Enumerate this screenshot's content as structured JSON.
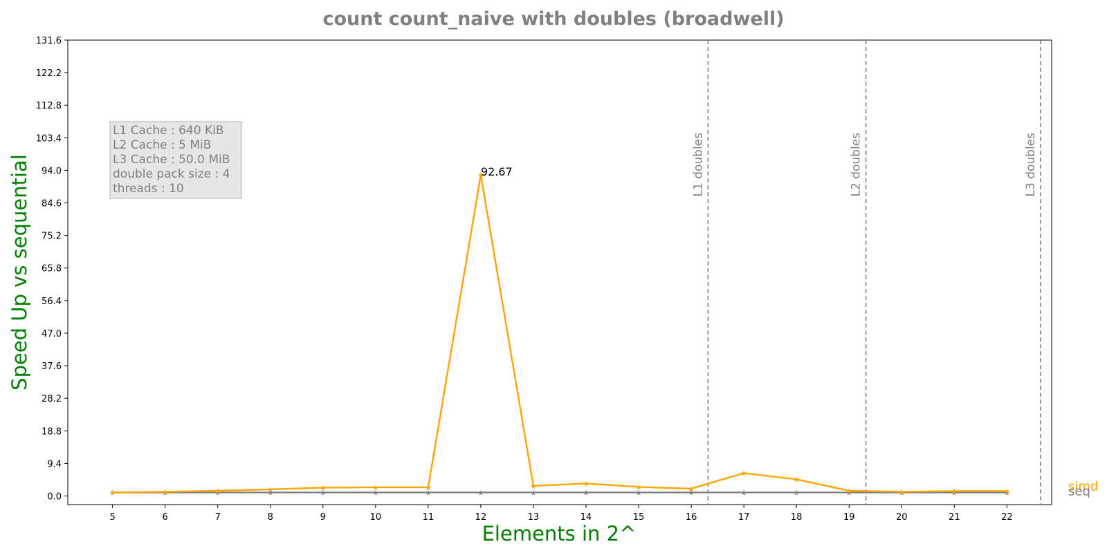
{
  "chart_data": {
    "type": "line",
    "title": "count count_naive with doubles  (broadwell)",
    "xlabel": "Elements in 2^",
    "ylabel": "Speed Up vs sequential",
    "x": [
      5,
      6,
      7,
      8,
      9,
      10,
      11,
      12,
      13,
      14,
      15,
      16,
      17,
      18,
      19,
      20,
      21,
      22
    ],
    "xlim": [
      4.15,
      22.85
    ],
    "ylim": [
      -2.5,
      131.6
    ],
    "y_ticks": [
      "0.0",
      "9.4",
      "18.8",
      "28.2",
      "37.6",
      "47.0",
      "56.4",
      "65.8",
      "75.2",
      "84.6",
      "94.0",
      "103.4",
      "112.8",
      "122.2",
      "131.6"
    ],
    "x_ticks": [
      "5",
      "6",
      "7",
      "8",
      "9",
      "10",
      "11",
      "12",
      "13",
      "14",
      "15",
      "16",
      "17",
      "18",
      "19",
      "20",
      "21",
      "22"
    ],
    "series": [
      {
        "name": "simd",
        "color": "#ffa500",
        "values": [
          1.0,
          1.2,
          1.5,
          1.9,
          2.4,
          2.5,
          2.5,
          92.67,
          2.9,
          3.6,
          2.6,
          2.1,
          6.6,
          4.8,
          1.5,
          1.2,
          1.4,
          1.4
        ]
      },
      {
        "name": "seq",
        "color": "#808080",
        "values": [
          1.0,
          1.0,
          1.0,
          1.0,
          1.0,
          1.0,
          1.0,
          1.0,
          1.0,
          1.0,
          1.0,
          1.0,
          1.0,
          1.0,
          1.0,
          1.0,
          1.0,
          1.0
        ]
      }
    ],
    "vertical_lines": [
      {
        "x": 16.32,
        "label": "L1 doubles"
      },
      {
        "x": 19.32,
        "label": "L2 doubles"
      },
      {
        "x": 22.64,
        "label": "L3 doubles"
      }
    ],
    "peak_annotation": {
      "x": 12,
      "y": 92.67,
      "text": "92.67"
    },
    "info_box": [
      "L1 Cache : 640 KiB",
      "L2 Cache : 5 MiB",
      "L3 Cache : 50.0 MiB",
      "double pack size : 4",
      "threads : 10"
    ],
    "grid": false
  },
  "colors": {
    "title": "#808080",
    "axis_title": "#008000",
    "info_box_bg": "#e6e6e6",
    "vline": "#808080"
  }
}
